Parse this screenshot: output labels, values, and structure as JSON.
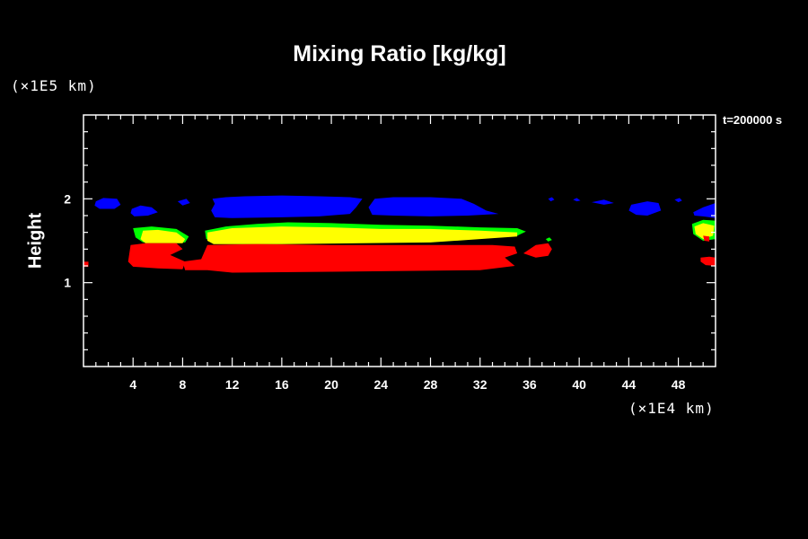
{
  "chart_data": {
    "type": "heatmap",
    "title": "Mixing Ratio [kg/kg]",
    "ylabel": "Height",
    "xlabel": "",
    "x_unit": "(×1E4 km)",
    "y_unit": "(×1E5 km)",
    "time_label": "t=200000 s",
    "xlim": [
      0,
      51
    ],
    "ylim": [
      0,
      3
    ],
    "x_ticks": [
      4,
      8,
      12,
      16,
      20,
      24,
      28,
      32,
      36,
      40,
      44,
      48
    ],
    "x_tick_labels": [
      "4",
      "8",
      "12",
      "16",
      "20",
      "24",
      "28",
      "32",
      "36",
      "40",
      "44",
      "48"
    ],
    "y_ticks": [
      1,
      2
    ],
    "y_tick_labels": [
      "1",
      "2"
    ],
    "colors": {
      "blue": "#0000ff",
      "green": "#00ff00",
      "yellow": "#ffff00",
      "red": "#ff0000",
      "background": "#000000",
      "axes": "#ffffff"
    },
    "regions": [
      {
        "color": "blue",
        "points": [
          [
            1.0,
            1.97
          ],
          [
            1.6,
            2.01
          ],
          [
            2.7,
            2.0
          ],
          [
            3.0,
            1.93
          ],
          [
            2.5,
            1.88
          ],
          [
            1.3,
            1.88
          ],
          [
            0.9,
            1.92
          ]
        ]
      },
      {
        "color": "blue",
        "points": [
          [
            3.9,
            1.88
          ],
          [
            4.6,
            1.92
          ],
          [
            5.5,
            1.9
          ],
          [
            6.0,
            1.84
          ],
          [
            5.2,
            1.8
          ],
          [
            4.1,
            1.79
          ],
          [
            3.8,
            1.83
          ]
        ]
      },
      {
        "color": "blue",
        "points": [
          [
            7.6,
            1.97
          ],
          [
            8.3,
            2.0
          ],
          [
            8.6,
            1.95
          ],
          [
            8.0,
            1.92
          ]
        ]
      },
      {
        "color": "blue",
        "points": [
          [
            10.4,
            2.0
          ],
          [
            11.5,
            2.02
          ],
          [
            13.0,
            2.03
          ],
          [
            16.0,
            2.04
          ],
          [
            19.0,
            2.03
          ],
          [
            21.5,
            2.02
          ],
          [
            22.5,
            2.0
          ],
          [
            22.0,
            1.9
          ],
          [
            21.5,
            1.82
          ],
          [
            19.0,
            1.79
          ],
          [
            16.0,
            1.78
          ],
          [
            12.0,
            1.77
          ],
          [
            10.6,
            1.78
          ],
          [
            10.3,
            1.86
          ],
          [
            10.6,
            1.94
          ]
        ]
      },
      {
        "color": "blue",
        "points": [
          [
            23.5,
            2.0
          ],
          [
            25.0,
            2.02
          ],
          [
            28.0,
            2.02
          ],
          [
            30.5,
            2.0
          ],
          [
            31.5,
            1.94
          ],
          [
            32.5,
            1.86
          ],
          [
            33.5,
            1.82
          ],
          [
            31.0,
            1.8
          ],
          [
            28.0,
            1.79
          ],
          [
            25.0,
            1.8
          ],
          [
            23.3,
            1.81
          ],
          [
            23.0,
            1.9
          ]
        ]
      },
      {
        "color": "blue",
        "points": [
          [
            37.5,
            2.0
          ],
          [
            37.8,
            2.02
          ],
          [
            38.0,
            1.99
          ],
          [
            37.7,
            1.97
          ]
        ]
      },
      {
        "color": "blue",
        "points": [
          [
            39.5,
            1.99
          ],
          [
            39.8,
            2.01
          ],
          [
            40.1,
            1.98
          ],
          [
            39.8,
            1.97
          ]
        ]
      },
      {
        "color": "blue",
        "points": [
          [
            41.0,
            1.96
          ],
          [
            42.0,
            1.99
          ],
          [
            42.8,
            1.95
          ],
          [
            42.0,
            1.93
          ]
        ]
      },
      {
        "color": "blue",
        "points": [
          [
            44.2,
            1.93
          ],
          [
            45.5,
            1.97
          ],
          [
            46.4,
            1.95
          ],
          [
            46.6,
            1.86
          ],
          [
            45.5,
            1.8
          ],
          [
            44.6,
            1.81
          ],
          [
            44.0,
            1.86
          ]
        ]
      },
      {
        "color": "blue",
        "points": [
          [
            47.7,
            1.99
          ],
          [
            48.1,
            2.01
          ],
          [
            48.3,
            1.98
          ],
          [
            48.0,
            1.96
          ]
        ]
      },
      {
        "color": "blue",
        "points": [
          [
            49.2,
            1.84
          ],
          [
            50.0,
            1.9
          ],
          [
            51.0,
            1.95
          ],
          [
            51.0,
            1.77
          ],
          [
            50.0,
            1.79
          ],
          [
            49.3,
            1.8
          ]
        ]
      },
      {
        "color": "green",
        "points": [
          [
            4.0,
            1.65
          ],
          [
            5.5,
            1.67
          ],
          [
            7.5,
            1.64
          ],
          [
            8.5,
            1.55
          ],
          [
            8.2,
            1.48
          ],
          [
            4.8,
            1.48
          ],
          [
            4.2,
            1.54
          ]
        ]
      },
      {
        "color": "green",
        "points": [
          [
            9.8,
            1.62
          ],
          [
            11.5,
            1.67
          ],
          [
            14.0,
            1.7
          ],
          [
            16.5,
            1.72
          ],
          [
            20.0,
            1.71
          ],
          [
            24.0,
            1.69
          ],
          [
            28.0,
            1.68
          ],
          [
            32.0,
            1.66
          ],
          [
            35.0,
            1.65
          ],
          [
            35.7,
            1.61
          ],
          [
            35.0,
            1.56
          ],
          [
            32.0,
            1.53
          ],
          [
            28.0,
            1.5
          ],
          [
            16.0,
            1.48
          ],
          [
            11.0,
            1.48
          ],
          [
            9.9,
            1.52
          ]
        ]
      },
      {
        "color": "green",
        "points": [
          [
            37.3,
            1.52
          ],
          [
            37.6,
            1.54
          ],
          [
            37.8,
            1.51
          ],
          [
            37.5,
            1.49
          ]
        ]
      },
      {
        "color": "green",
        "points": [
          [
            49.1,
            1.7
          ],
          [
            50.0,
            1.75
          ],
          [
            51.0,
            1.74
          ],
          [
            51.0,
            1.52
          ],
          [
            50.0,
            1.5
          ],
          [
            49.2,
            1.58
          ]
        ]
      },
      {
        "color": "yellow",
        "points": [
          [
            4.8,
            1.62
          ],
          [
            6.0,
            1.63
          ],
          [
            7.5,
            1.6
          ],
          [
            8.2,
            1.52
          ],
          [
            8.0,
            1.47
          ],
          [
            5.0,
            1.47
          ],
          [
            4.6,
            1.52
          ]
        ]
      },
      {
        "color": "yellow",
        "points": [
          [
            10.0,
            1.6
          ],
          [
            12.0,
            1.65
          ],
          [
            16.0,
            1.67
          ],
          [
            20.0,
            1.66
          ],
          [
            24.0,
            1.64
          ],
          [
            28.0,
            1.64
          ],
          [
            32.0,
            1.62
          ],
          [
            35.0,
            1.6
          ],
          [
            35.0,
            1.55
          ],
          [
            32.0,
            1.52
          ],
          [
            28.0,
            1.48
          ],
          [
            16.0,
            1.46
          ],
          [
            10.5,
            1.46
          ],
          [
            10.0,
            1.5
          ]
        ]
      },
      {
        "color": "yellow",
        "points": [
          [
            49.3,
            1.67
          ],
          [
            50.0,
            1.71
          ],
          [
            50.9,
            1.68
          ],
          [
            50.8,
            1.56
          ],
          [
            50.0,
            1.52
          ],
          [
            49.4,
            1.58
          ]
        ]
      },
      {
        "color": "red",
        "points": [
          [
            3.8,
            1.45
          ],
          [
            5.0,
            1.47
          ],
          [
            7.5,
            1.47
          ],
          [
            8.0,
            1.4
          ],
          [
            7.0,
            1.33
          ],
          [
            8.2,
            1.25
          ],
          [
            8.0,
            1.16
          ],
          [
            6.0,
            1.17
          ],
          [
            4.0,
            1.19
          ],
          [
            3.6,
            1.25
          ]
        ]
      },
      {
        "color": "red",
        "points": [
          [
            9.5,
            1.28
          ],
          [
            10.0,
            1.45
          ],
          [
            14.0,
            1.46
          ],
          [
            20.0,
            1.45
          ],
          [
            28.0,
            1.45
          ],
          [
            33.0,
            1.45
          ],
          [
            34.8,
            1.43
          ],
          [
            35.0,
            1.35
          ],
          [
            34.0,
            1.3
          ],
          [
            34.8,
            1.2
          ],
          [
            32.0,
            1.15
          ],
          [
            20.0,
            1.13
          ],
          [
            12.0,
            1.12
          ],
          [
            10.0,
            1.15
          ],
          [
            8.2,
            1.15
          ],
          [
            8.0,
            1.25
          ]
        ]
      },
      {
        "color": "red",
        "points": [
          [
            35.5,
            1.35
          ],
          [
            36.5,
            1.45
          ],
          [
            37.5,
            1.47
          ],
          [
            37.8,
            1.4
          ],
          [
            37.5,
            1.32
          ],
          [
            36.5,
            1.3
          ]
        ]
      },
      {
        "color": "red",
        "points": [
          [
            49.8,
            1.3
          ],
          [
            50.5,
            1.31
          ],
          [
            51.0,
            1.3
          ],
          [
            51.0,
            1.2
          ],
          [
            50.2,
            1.21
          ],
          [
            49.8,
            1.25
          ]
        ]
      },
      {
        "color": "red",
        "points": [
          [
            0.0,
            1.25
          ],
          [
            0.4,
            1.25
          ],
          [
            0.4,
            1.19
          ],
          [
            0.0,
            1.19
          ]
        ]
      },
      {
        "color": "red",
        "points": [
          [
            50.0,
            1.56
          ],
          [
            50.5,
            1.55
          ],
          [
            50.5,
            1.49
          ],
          [
            50.1,
            1.5
          ]
        ]
      }
    ]
  }
}
